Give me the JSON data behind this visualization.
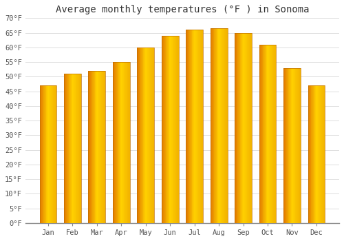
{
  "title": "Average monthly temperatures (°F ) in Sonoma",
  "months": [
    "Jan",
    "Feb",
    "Mar",
    "Apr",
    "May",
    "Jun",
    "Jul",
    "Aug",
    "Sep",
    "Oct",
    "Nov",
    "Dec"
  ],
  "values": [
    47,
    51,
    52,
    55,
    60,
    64,
    66,
    66.5,
    65,
    61,
    53,
    47
  ],
  "bar_color_left": "#E07800",
  "bar_color_center": "#FFC000",
  "bar_color_right": "#FFB830",
  "ylim": [
    0,
    70
  ],
  "yticks": [
    0,
    5,
    10,
    15,
    20,
    25,
    30,
    35,
    40,
    45,
    50,
    55,
    60,
    65,
    70
  ],
  "ytick_labels": [
    "0°F",
    "5°F",
    "10°F",
    "15°F",
    "20°F",
    "25°F",
    "30°F",
    "35°F",
    "40°F",
    "45°F",
    "50°F",
    "55°F",
    "60°F",
    "65°F",
    "70°F"
  ],
  "background_color": "#ffffff",
  "grid_color": "#dddddd",
  "title_fontsize": 10,
  "tick_fontsize": 7.5,
  "bar_edge_color": "#C07000"
}
